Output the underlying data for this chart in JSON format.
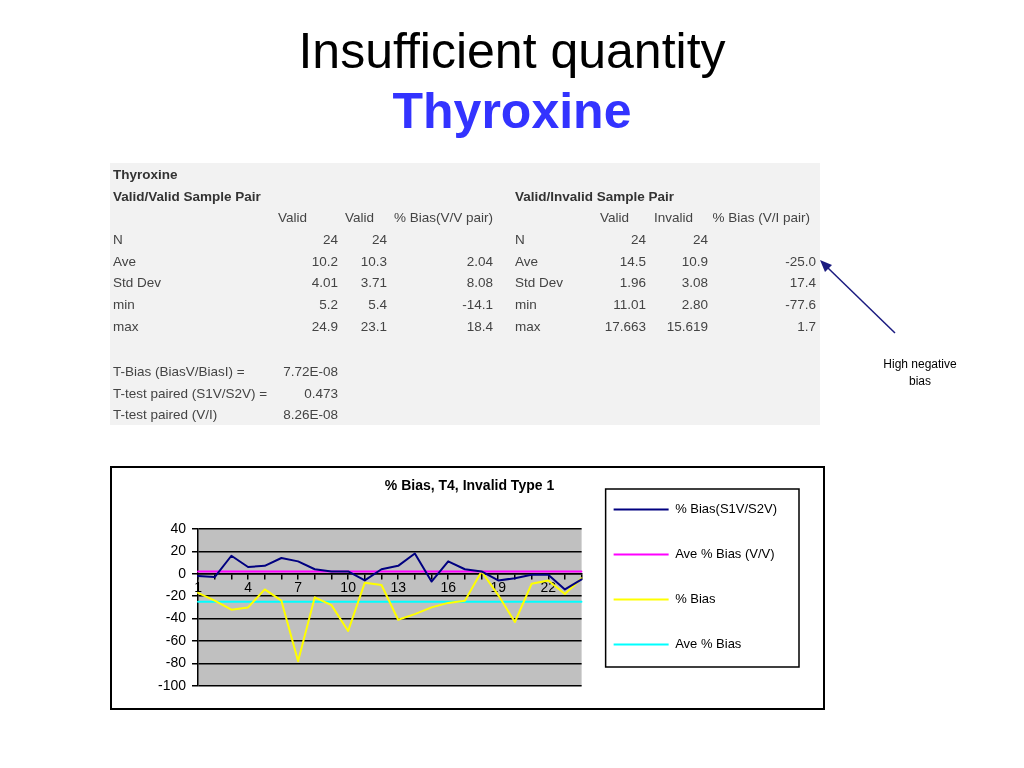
{
  "chart_data": [
    {
      "type": "other",
      "title": "Insufficient quantity",
      "subtitle": "Thyroxine",
      "annotations": [
        "Thyroxine",
        "Valid/Valid Sample Pair",
        "Valid/Invalid Sample Pair",
        "Valid",
        "Valid",
        "% Bias(V/V pair)",
        "Valid",
        "Invalid",
        "% Bias (V/I pair)",
        "N",
        "24",
        "24",
        "N",
        "24",
        "24",
        "Ave",
        "10.2",
        "10.3",
        "2.04",
        "Ave",
        "14.5",
        "10.9",
        "-25.0",
        "Std Dev",
        "4.01",
        "3.71",
        "8.08",
        "Std Dev",
        "1.96",
        "3.08",
        "17.4",
        "min",
        "5.2",
        "5.4",
        "-14.1",
        "min",
        "11.01",
        "2.80",
        "-77.6",
        "max",
        "24.9",
        "23.1",
        "18.4",
        "max",
        "17.663",
        "15.619",
        "1.7",
        "T-Bias (BiasV/BiasI) =",
        "7.72E-08",
        "T-test paired (S1V/S2V) =",
        "0.473",
        "T-test paired (V/I)",
        "8.26E-08",
        "High negative bias"
      ]
    },
    {
      "type": "line",
      "title": "% Bias, T4, Invalid Type 1",
      "categories": [
        "1",
        null,
        null,
        "4",
        null,
        null,
        "7",
        null,
        null,
        "10",
        null,
        null,
        "13",
        null,
        null,
        "16",
        null,
        null,
        "19",
        null,
        null,
        "22",
        null,
        null
      ],
      "series": [
        {
          "name": "% Bias(S1V/S2V)",
          "color": "#000080",
          "values": [
            -2,
            -3,
            16,
            6,
            7,
            14,
            11,
            4,
            2,
            2,
            -6,
            4,
            7,
            18,
            -7,
            11,
            4,
            2,
            -6,
            -4,
            -1,
            -1,
            -14,
            -5
          ]
        },
        {
          "name": "Ave % Bias (V/V)",
          "color": "#ff00ff",
          "values": [
            2,
            2,
            2,
            2,
            2,
            2,
            2,
            2,
            2,
            2,
            2,
            2,
            2,
            2,
            2,
            2,
            2,
            2,
            2,
            2,
            2,
            2,
            2,
            2
          ]
        },
        {
          "name": "% Bias",
          "color": "#ffff00",
          "values": [
            -17,
            -24,
            -32,
            -30,
            -14,
            -24,
            -78,
            -21,
            -28,
            -51,
            -8,
            -10,
            -41,
            -36,
            -30,
            -26,
            -24,
            2,
            -19,
            -43,
            -9,
            -6,
            -18,
            -4
          ]
        },
        {
          "name": "Ave % Bias",
          "color": "#00ffff",
          "values": [
            -25,
            -25,
            -25,
            -25,
            -25,
            -25,
            -25,
            -25,
            -25,
            -25,
            -25,
            -25,
            -25,
            -25,
            -25,
            -25,
            -25,
            -25,
            -25,
            -25,
            -25,
            -25,
            -25,
            -25
          ]
        }
      ],
      "ylim": [
        -100,
        40
      ],
      "yticks": [
        -100,
        -80,
        -60,
        -40,
        -20,
        0,
        20,
        40
      ],
      "grid": "y",
      "legend": "right",
      "marker": "none"
    }
  ]
}
